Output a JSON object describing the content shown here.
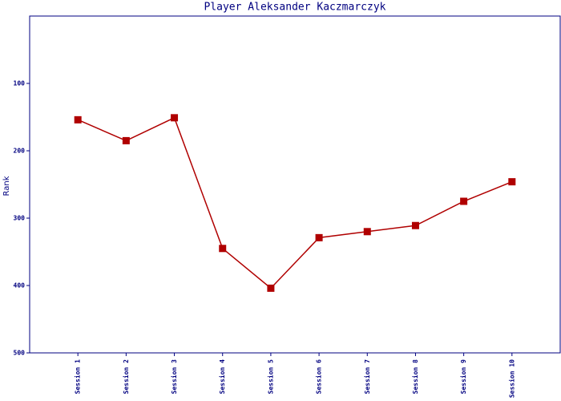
{
  "chart_data": {
    "type": "line",
    "title": "Player Aleksander Kaczmarczyk",
    "y_label": "Rank",
    "categories": [
      "Session 1",
      "Session 2",
      "Session 3",
      "Session 4",
      "Session 5",
      "Session 6",
      "Session 7",
      "Session 8",
      "Session 9",
      "Session 10"
    ],
    "series": [
      {
        "name": "Rank",
        "color": "#b00000",
        "values": [
          154,
          185,
          151,
          345,
          404,
          329,
          320,
          311,
          275,
          246
        ]
      }
    ],
    "ylim": [
      0,
      500
    ],
    "y_reversed": true,
    "yticks": [
      100,
      200,
      300,
      400,
      500
    ],
    "grid": false
  }
}
